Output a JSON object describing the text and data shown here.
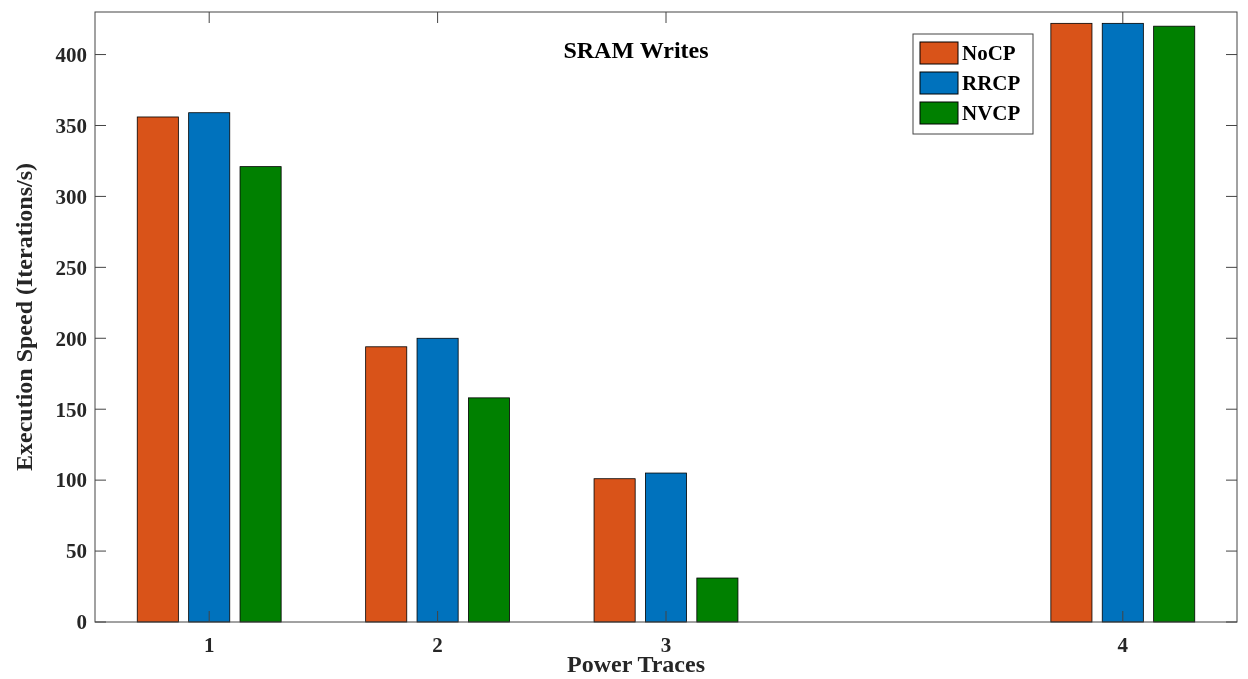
{
  "chart_data": {
    "type": "bar",
    "title": "SRAM Writes",
    "xlabel": "Power Traces",
    "ylabel": "Execution Speed (Iterations/s)",
    "categories": [
      "1",
      "2",
      "3",
      null,
      "4"
    ],
    "ylim": [
      0,
      430
    ],
    "yticks": [
      0,
      50,
      100,
      150,
      200,
      250,
      300,
      350,
      400
    ],
    "legend": "top right",
    "grid": false,
    "series": [
      {
        "name": "NoCP",
        "color": "#d95319",
        "values": [
          356,
          194,
          101,
          null,
          422
        ]
      },
      {
        "name": "RRCP",
        "color": "#0072bd",
        "values": [
          359,
          200,
          105,
          null,
          422
        ]
      },
      {
        "name": "NVCP",
        "color": "#008000",
        "values": [
          321,
          158,
          31,
          null,
          420
        ]
      }
    ]
  }
}
